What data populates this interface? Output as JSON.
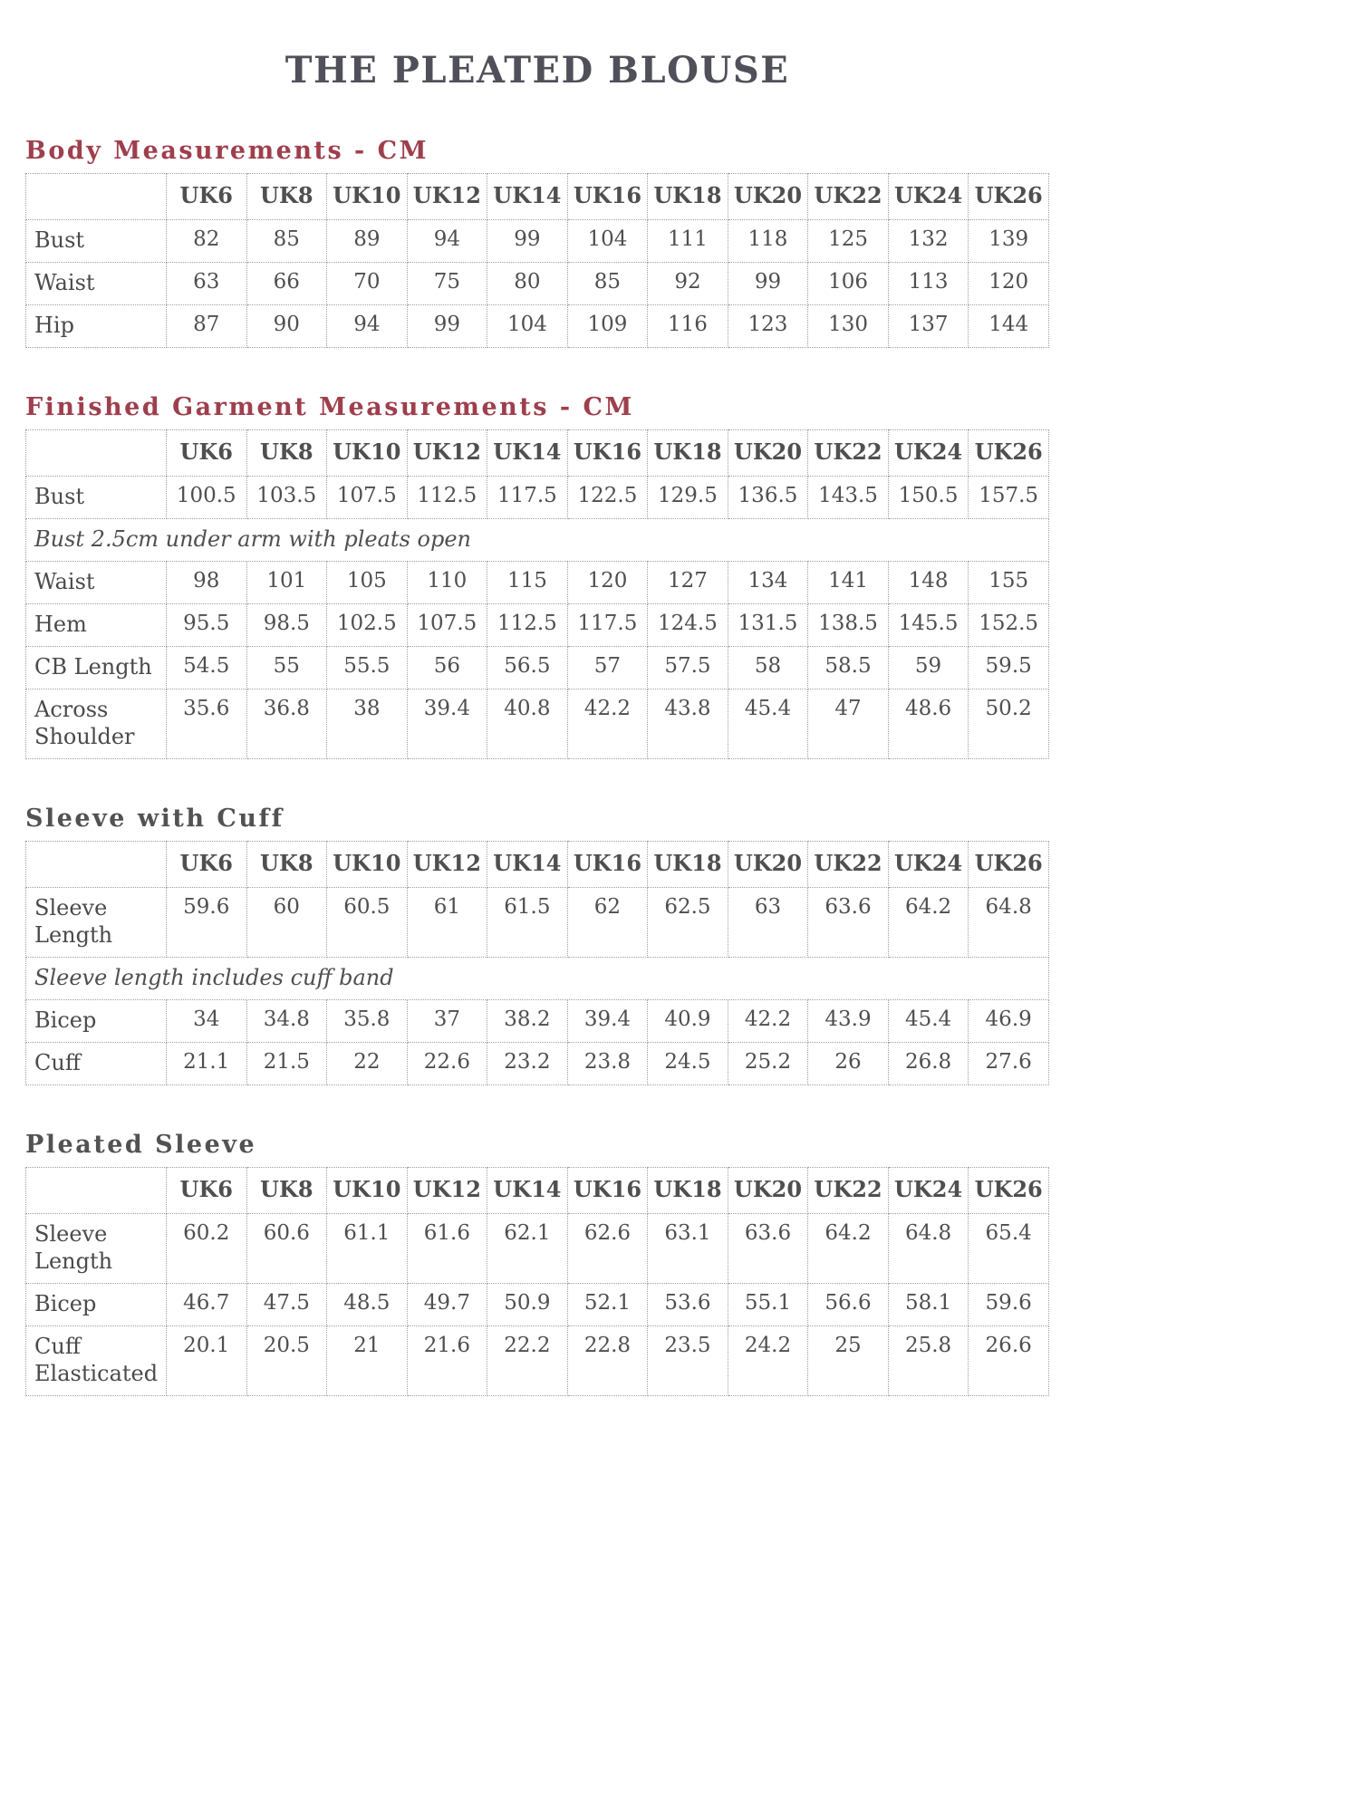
{
  "title": "THE PLEATED BLOUSE",
  "sizes": [
    "UK6",
    "UK8",
    "UK10",
    "UK12",
    "UK14",
    "UK16",
    "UK18",
    "UK20",
    "UK22",
    "UK24",
    "UK26"
  ],
  "colors": {
    "accent_red": "#9e3f4d",
    "heading_gray": "#525252",
    "text_gray": "#4a4a4a",
    "border_dotted": "#9f9f9f"
  },
  "sections": [
    {
      "id": "body-measurements",
      "heading": "Body Measurements - CM",
      "style": "red",
      "rows": [
        {
          "type": "data",
          "label": "Bust",
          "values": [
            "82",
            "85",
            "89",
            "94",
            "99",
            "104",
            "111",
            "118",
            "125",
            "132",
            "139"
          ]
        },
        {
          "type": "data",
          "label": "Waist",
          "values": [
            "63",
            "66",
            "70",
            "75",
            "80",
            "85",
            "92",
            "99",
            "106",
            "113",
            "120"
          ]
        },
        {
          "type": "data",
          "label": "Hip",
          "values": [
            "87",
            "90",
            "94",
            "99",
            "104",
            "109",
            "116",
            "123",
            "130",
            "137",
            "144"
          ]
        }
      ]
    },
    {
      "id": "finished-garment-measurements",
      "heading": "Finished Garment Measurements - CM",
      "style": "red",
      "rows": [
        {
          "type": "data",
          "label": "Bust",
          "values": [
            "100.5",
            "103.5",
            "107.5",
            "112.5",
            "117.5",
            "122.5",
            "129.5",
            "136.5",
            "143.5",
            "150.5",
            "157.5"
          ]
        },
        {
          "type": "note",
          "label": "Bust 2.5cm under arm with pleats open"
        },
        {
          "type": "data",
          "label": "Waist",
          "values": [
            "98",
            "101",
            "105",
            "110",
            "115",
            "120",
            "127",
            "134",
            "141",
            "148",
            "155"
          ]
        },
        {
          "type": "data",
          "label": "Hem",
          "values": [
            "95.5",
            "98.5",
            "102.5",
            "107.5",
            "112.5",
            "117.5",
            "124.5",
            "131.5",
            "138.5",
            "145.5",
            "152.5"
          ]
        },
        {
          "type": "data",
          "label": "CB Length",
          "values": [
            "54.5",
            "55",
            "55.5",
            "56",
            "56.5",
            "57",
            "57.5",
            "58",
            "58.5",
            "59",
            "59.5"
          ]
        },
        {
          "type": "data",
          "label": "Across Shoulder",
          "values": [
            "35.6",
            "36.8",
            "38",
            "39.4",
            "40.8",
            "42.2",
            "43.8",
            "45.4",
            "47",
            "48.6",
            "50.2"
          ]
        }
      ]
    },
    {
      "id": "sleeve-with-cuff",
      "heading": "Sleeve with Cuff",
      "style": "gray",
      "rows": [
        {
          "type": "data",
          "label": "Sleeve Length",
          "values": [
            "59.6",
            "60",
            "60.5",
            "61",
            "61.5",
            "62",
            "62.5",
            "63",
            "63.6",
            "64.2",
            "64.8"
          ]
        },
        {
          "type": "note",
          "label": "Sleeve length includes cuff band"
        },
        {
          "type": "data",
          "label": "Bicep",
          "values": [
            "34",
            "34.8",
            "35.8",
            "37",
            "38.2",
            "39.4",
            "40.9",
            "42.2",
            "43.9",
            "45.4",
            "46.9"
          ]
        },
        {
          "type": "data",
          "label": "Cuff",
          "values": [
            "21.1",
            "21.5",
            "22",
            "22.6",
            "23.2",
            "23.8",
            "24.5",
            "25.2",
            "26",
            "26.8",
            "27.6"
          ]
        }
      ]
    },
    {
      "id": "pleated-sleeve",
      "heading": "Pleated Sleeve",
      "style": "gray",
      "rows": [
        {
          "type": "data",
          "label": "Sleeve Length",
          "values": [
            "60.2",
            "60.6",
            "61.1",
            "61.6",
            "62.1",
            "62.6",
            "63.1",
            "63.6",
            "64.2",
            "64.8",
            "65.4"
          ]
        },
        {
          "type": "data",
          "label": "Bicep",
          "values": [
            "46.7",
            "47.5",
            "48.5",
            "49.7",
            "50.9",
            "52.1",
            "53.6",
            "55.1",
            "56.6",
            "58.1",
            "59.6"
          ]
        },
        {
          "type": "data",
          "label": "Cuff Elasticated",
          "values": [
            "20.1",
            "20.5",
            "21",
            "21.6",
            "22.2",
            "22.8",
            "23.5",
            "24.2",
            "25",
            "25.8",
            "26.6"
          ]
        }
      ]
    }
  ]
}
